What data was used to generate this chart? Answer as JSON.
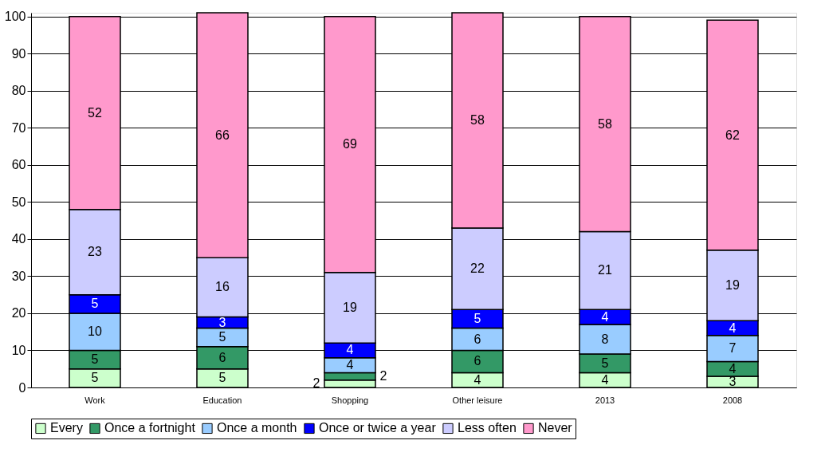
{
  "chart_data": {
    "type": "bar",
    "stacked": true,
    "categories": [
      "Work",
      "Education",
      "Shopping",
      "Other leisure",
      "2013",
      "2008"
    ],
    "series": [
      {
        "name": "Every",
        "color": "#ccffcc",
        "values": [
          5,
          5,
          2,
          4,
          4,
          3
        ]
      },
      {
        "name": "Once a fortnight",
        "color": "#339966",
        "values": [
          5,
          6,
          2,
          6,
          5,
          4
        ]
      },
      {
        "name": "Once a month",
        "color": "#99ccff",
        "values": [
          10,
          5,
          4,
          6,
          8,
          7
        ]
      },
      {
        "name": "Once or twice a year",
        "color": "#0000ff",
        "values": [
          5,
          3,
          4,
          5,
          4,
          4
        ]
      },
      {
        "name": "Less often",
        "color": "#ccccff",
        "values": [
          23,
          16,
          19,
          22,
          21,
          19
        ]
      },
      {
        "name": "Never",
        "color": "#ff99cc",
        "values": [
          52,
          66,
          69,
          58,
          58,
          62
        ]
      }
    ],
    "ylim": [
      0,
      101
    ],
    "yticks": [
      0,
      10,
      20,
      30,
      40,
      50,
      60,
      70,
      80,
      90,
      100
    ],
    "grid": "y",
    "legend": "bottom",
    "data_labels": true
  }
}
